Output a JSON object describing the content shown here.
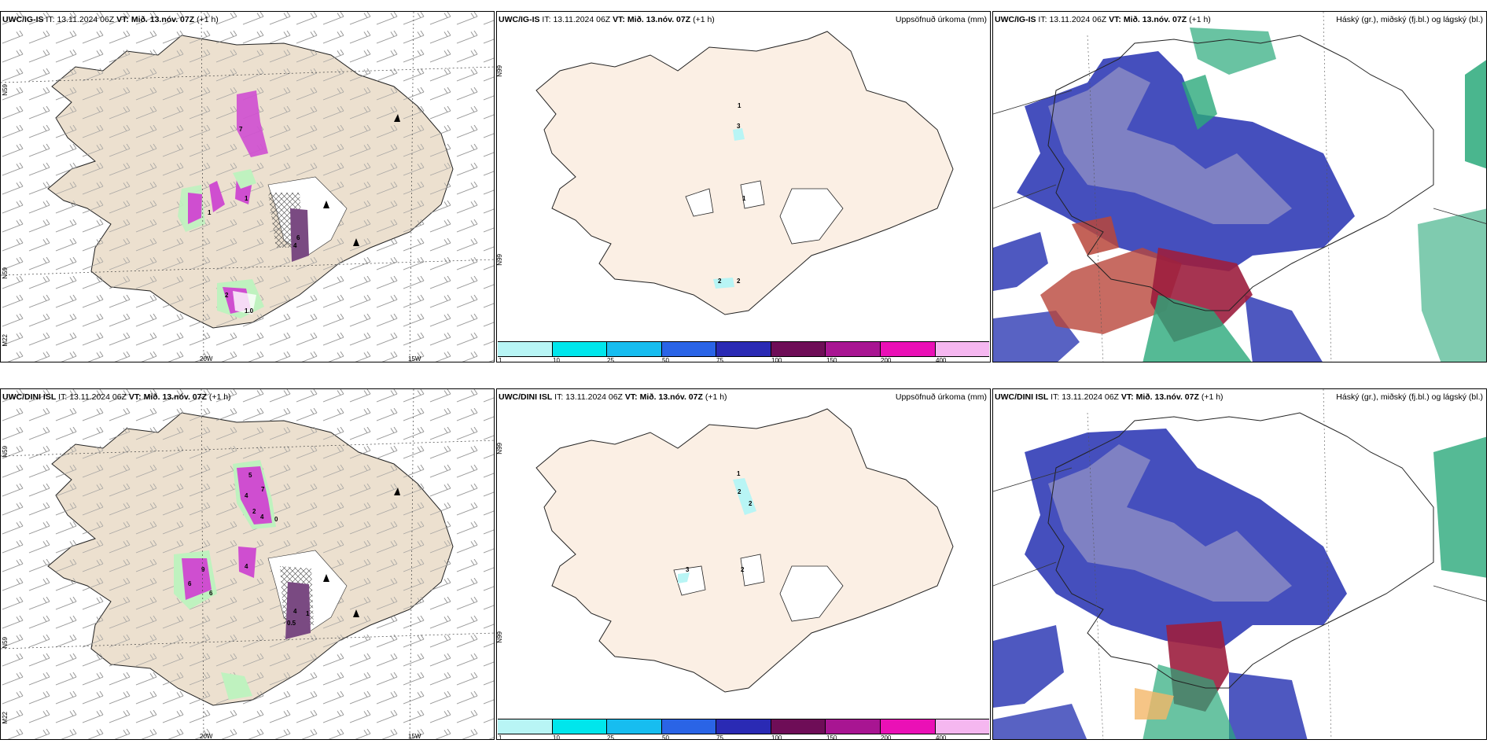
{
  "colors": {
    "land": "#ece0cf",
    "land_precip": "#fbefe4",
    "wind_barb": "#9a9a9a",
    "precip_magenta": "#cf4ed0",
    "precip_dark": "#7a4a82",
    "precip_green": "#bff2bf",
    "cloud_low": "#3b46b9",
    "cloud_mid": "#b9463b",
    "cloud_high": "#2aa97a"
  },
  "rows": [
    {
      "model": "UWC/IG-IS",
      "it_label": "IT:",
      "it_value": "13.11.2024 06Z",
      "vt_label": "VT:",
      "vt_value": "Mið. 13.nóv. 07Z",
      "lead": "(+1 h)",
      "precip_title": "Uppsöfnuð úrkoma (mm)",
      "cloud_title": "Háský (gr.), miðský (fj.bl.) og lágský (bl.)",
      "wind_numbers": [
        "7",
        "1",
        "1",
        "6",
        "4",
        "2",
        "1.0"
      ],
      "precip_numbers": [
        "1",
        "3",
        "1",
        "2",
        "2"
      ]
    },
    {
      "model": "UWC/DINI ISL",
      "it_label": "IT:",
      "it_value": "13.11.2024 06Z",
      "vt_label": "VT:",
      "vt_value": "Mið. 13.nóv. 07Z",
      "lead": "(+1 h)",
      "precip_title": "Uppsöfnuð úrkoma (mm)",
      "cloud_title": "Háský (gr.), miðský (fj.bl.) og lágský (bl.)",
      "wind_numbers": [
        "5",
        "7",
        "4",
        "2",
        "4",
        "0",
        "9",
        "6",
        "6",
        "4",
        "4",
        "0.5",
        "1"
      ],
      "precip_numbers": [
        "1",
        "2",
        "2",
        "3",
        "2"
      ]
    }
  ],
  "axes": {
    "lon_labels": [
      "20W",
      "15W"
    ],
    "lat_labels_left": [
      "N59",
      "N59",
      "M22"
    ],
    "lat_labels_mid": [
      "N99",
      "N99"
    ]
  },
  "colorbar": {
    "ticks": [
      "1",
      "10",
      "25",
      "50",
      "75",
      "100",
      "150",
      "200",
      "400"
    ],
    "colors": [
      "#b8f5f5",
      "#00e6ec",
      "#17bdf0",
      "#2a64e6",
      "#2a2ab4",
      "#6e0d57",
      "#a81592",
      "#ea10b6",
      "#f5b7f0"
    ]
  }
}
